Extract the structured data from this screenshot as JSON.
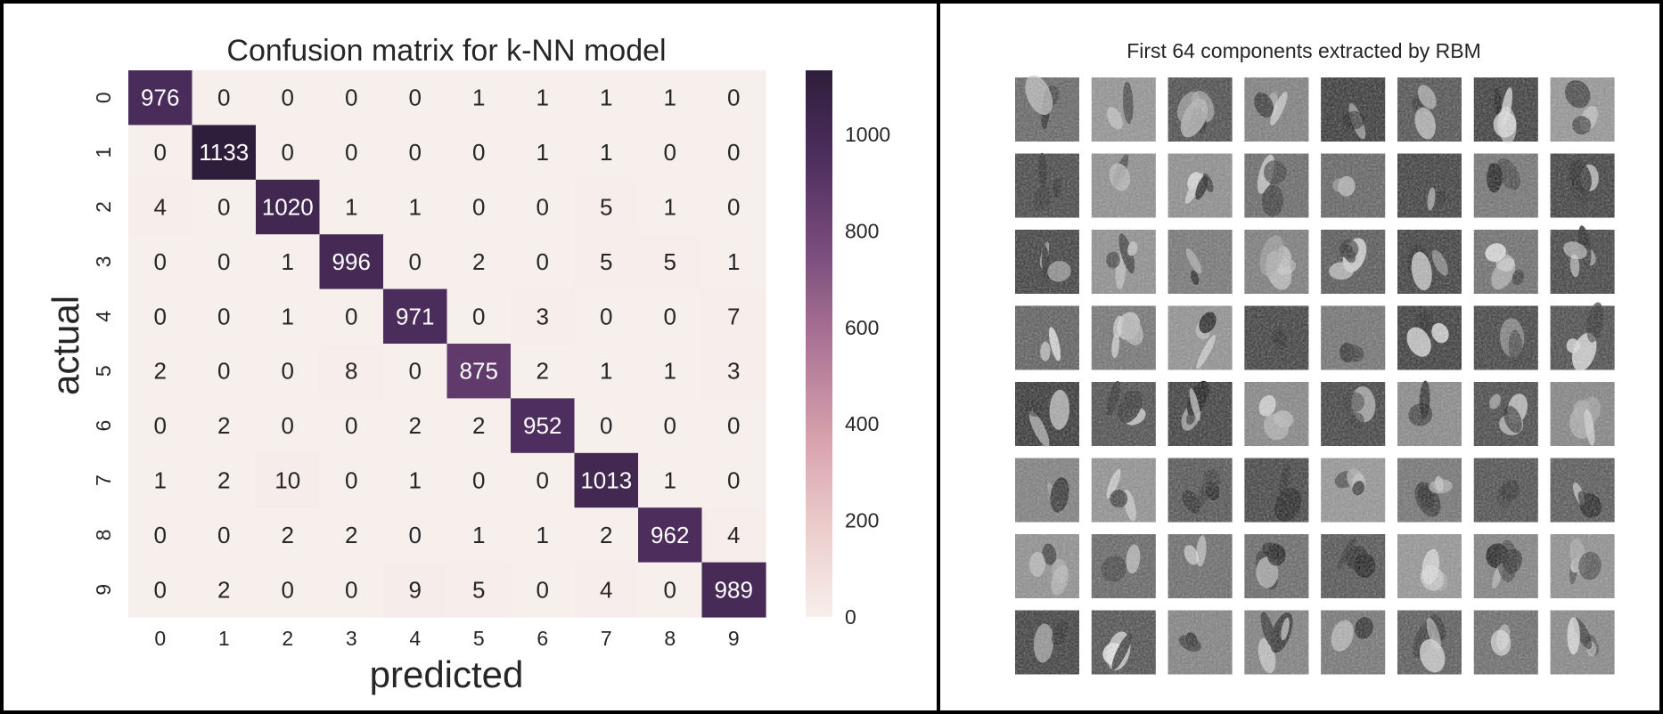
{
  "chart_data": [
    {
      "type": "heatmap",
      "title": "Confusion matrix for k-NN model",
      "xlabel": "predicted",
      "ylabel": "actual",
      "x_categories": [
        "0",
        "1",
        "2",
        "3",
        "4",
        "5",
        "6",
        "7",
        "8",
        "9"
      ],
      "y_categories": [
        "0",
        "1",
        "2",
        "3",
        "4",
        "5",
        "6",
        "7",
        "8",
        "9"
      ],
      "values": [
        [
          976,
          0,
          0,
          0,
          0,
          1,
          1,
          1,
          1,
          0
        ],
        [
          0,
          1133,
          0,
          0,
          0,
          0,
          1,
          1,
          0,
          0
        ],
        [
          4,
          0,
          1020,
          1,
          1,
          0,
          0,
          5,
          1,
          0
        ],
        [
          0,
          0,
          1,
          996,
          0,
          2,
          0,
          5,
          5,
          1
        ],
        [
          0,
          0,
          1,
          0,
          971,
          0,
          3,
          0,
          0,
          7
        ],
        [
          2,
          0,
          0,
          8,
          0,
          875,
          2,
          1,
          1,
          3
        ],
        [
          0,
          2,
          0,
          0,
          2,
          2,
          952,
          0,
          0,
          0
        ],
        [
          1,
          2,
          10,
          0,
          1,
          0,
          0,
          1013,
          1,
          0
        ],
        [
          0,
          0,
          2,
          2,
          0,
          1,
          1,
          2,
          962,
          4
        ],
        [
          0,
          2,
          0,
          0,
          9,
          5,
          0,
          4,
          0,
          989
        ]
      ],
      "colorbar": {
        "min": 0,
        "max": 1133,
        "ticks": [
          0,
          200,
          400,
          600,
          800,
          1000
        ],
        "tick_labels": [
          "0",
          "200",
          "400",
          "600",
          "800",
          "1000"
        ]
      },
      "colors": {
        "low": "#f7efec",
        "stops": [
          "#f7efec",
          "#eccccc",
          "#d69fac",
          "#ad7595",
          "#7a4d7d",
          "#4f2f5f",
          "#2e1e3b"
        ],
        "text_dark": "#262626",
        "text_light": "#ffffff"
      }
    },
    {
      "type": "image-grid",
      "title": "First 64 components extracted by RBM",
      "rows": 8,
      "cols": 8
    }
  ]
}
